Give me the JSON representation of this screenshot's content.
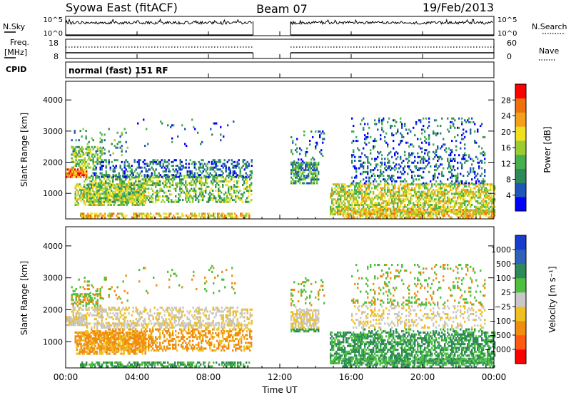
{
  "header": {
    "station": "Syowa East (fitACF)",
    "beam": "Beam 07",
    "date": "19/Feb/2013"
  },
  "chart_data": {
    "type": "heatmap",
    "x_axis": {
      "label": "Time UT",
      "range_hours": [
        0,
        24
      ],
      "tick_hours": [
        0,
        4,
        8,
        12,
        16,
        20,
        24
      ],
      "tick_labels": [
        "00:00",
        "04:00",
        "08:00",
        "12:00",
        "16:00",
        "20:00",
        "00:00"
      ]
    },
    "data_gap_hours": [
      10.5,
      12.6
    ],
    "noise_panel": {
      "left_label": "N.Sky",
      "right_label": "N.Search",
      "left_ticks": [
        "10^5",
        "10^0"
      ],
      "right_ticks": [
        "10^5",
        "10^0"
      ]
    },
    "freq_panel": {
      "left_label_line1": "Freq.",
      "left_label_line2": "[MHz]",
      "left_ticks": [
        "18",
        "8"
      ],
      "right_label": "Nave",
      "right_ticks": [
        "60",
        "0"
      ]
    },
    "cpid_panel": {
      "label": "CPID",
      "text": "normal (fast) 151 RF"
    },
    "range_axis": {
      "label": "Slant Range [km]",
      "range_km": [
        180,
        4600
      ],
      "tick_km": [
        1000,
        2000,
        3000,
        4000
      ],
      "tick_labels": [
        "1000",
        "2000",
        "3000",
        "4000"
      ]
    },
    "power_panel": {
      "colorbar_label": "Power [dB]",
      "colorbar_ticks": [
        "28",
        "24",
        "20",
        "16",
        "12",
        "8",
        "4"
      ],
      "colors": [
        "#0000ff",
        "#1f57b8",
        "#2f8a5a",
        "#46b04e",
        "#9acd32",
        "#f0e020",
        "#f4a01a",
        "#f07010",
        "#ff0000"
      ]
    },
    "velocity_panel": {
      "colorbar_label": "Velocity [m s⁻¹]",
      "colorbar_ticks": [
        "1000",
        "500",
        "100",
        "25",
        "−25",
        "−100",
        "−500",
        "−1000"
      ],
      "colors": [
        "#1a3ccc",
        "#2f62b8",
        "#2f8a5a",
        "#4fbf3f",
        "#c8c8c8",
        "#f0c020",
        "#f08c10",
        "#ff5a10",
        "#ff0000"
      ]
    }
  }
}
